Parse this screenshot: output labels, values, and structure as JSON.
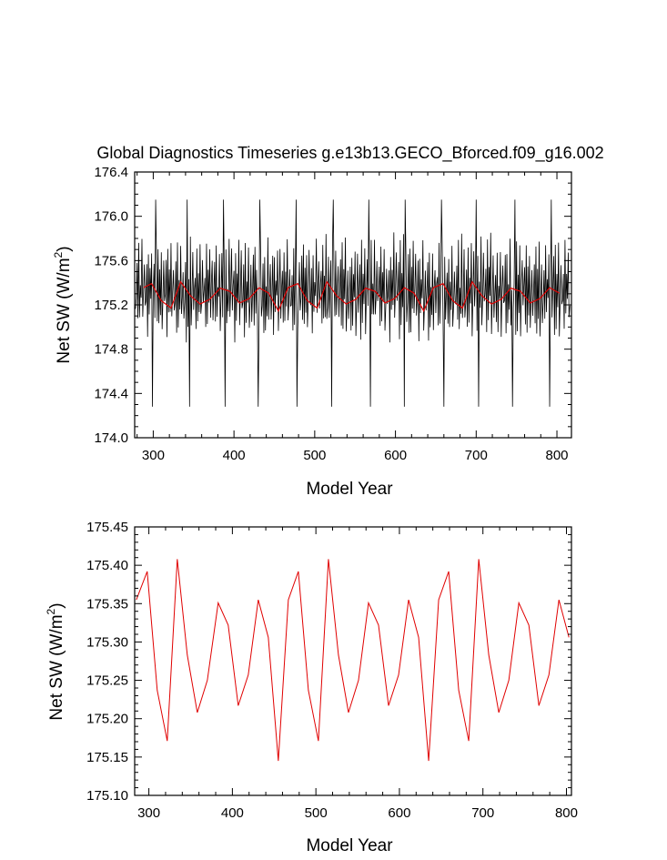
{
  "chart_data": [
    {
      "type": "line",
      "title": "Global Diagnostics Timeseries g.e13b13.GECO_Bforced.f09_g16.002",
      "xlabel": "Model Year",
      "ylabel": "Net SW (W/m",
      "ylabel_sup": "2",
      "ylabel_end": ")",
      "xlim": [
        277,
        818
      ],
      "ylim": [
        174.0,
        176.4
      ],
      "xticks": [
        300,
        400,
        500,
        600,
        700,
        800
      ],
      "xtick_labels": [
        "300",
        "400",
        "500",
        "600",
        "700",
        "800"
      ],
      "yticks": [
        174.0,
        174.4,
        174.8,
        175.2,
        175.6,
        176.0,
        176.4
      ],
      "ytick_labels": [
        "174.0",
        "174.4",
        "174.8",
        "175.2",
        "175.6",
        "176.0",
        "176.4"
      ],
      "grid": false,
      "series": [
        {
          "color": "#000000",
          "x_start": 278,
          "x_step": 1,
          "annual_cycle": [
            175.13,
            175.3,
            175.55,
            174.97,
            175.72,
            175.05,
            175.45,
            175.18,
            175.75,
            175.02,
            175.28,
            175.6
          ],
          "spike_years": [
            303,
            342,
            387,
            432,
            477,
            523,
            567,
            612,
            657,
            700,
            748,
            793
          ],
          "spike_max": 176.15,
          "dip_years": [
            299,
            345,
            389,
            430,
            478,
            521,
            569,
            611,
            660,
            703,
            745,
            791
          ],
          "dip_min": 174.28
        },
        {
          "color": "#e00000",
          "x": [
            288,
            298,
            310,
            322,
            334,
            346,
            358,
            370,
            383,
            395,
            407,
            419,
            431,
            443,
            455,
            467,
            479,
            491,
            503,
            515,
            527,
            539,
            551,
            563,
            575,
            587,
            599,
            611,
            623,
            635,
            647,
            659,
            671,
            683,
            695,
            707,
            719,
            731,
            743,
            755,
            767,
            779,
            791,
            803
          ],
          "y": [
            175.355,
            175.392,
            175.237,
            175.171,
            175.408,
            175.283,
            175.208,
            175.25,
            175.351,
            175.322,
            175.217,
            175.257,
            175.355,
            175.306,
            175.145,
            175.355,
            175.392,
            175.237,
            175.171,
            175.408,
            175.283,
            175.208,
            175.25,
            175.351,
            175.322,
            175.217,
            175.257,
            175.355,
            175.306,
            175.145,
            175.355,
            175.392,
            175.237,
            175.171,
            175.408,
            175.283,
            175.208,
            175.25,
            175.351,
            175.322,
            175.217,
            175.257,
            175.355,
            175.306
          ]
        }
      ]
    },
    {
      "type": "line",
      "xlabel": "Model Year",
      "ylabel": "Net SW (W/m",
      "ylabel_sup": "2",
      "ylabel_end": ")",
      "xlim": [
        283,
        806
      ],
      "ylim": [
        175.1,
        175.45
      ],
      "xticks": [
        300,
        400,
        500,
        600,
        700,
        800
      ],
      "xtick_labels": [
        "300",
        "400",
        "500",
        "600",
        "700",
        "800"
      ],
      "yticks": [
        175.1,
        175.15,
        175.2,
        175.25,
        175.3,
        175.35,
        175.4,
        175.45
      ],
      "ytick_labels": [
        "175.10",
        "175.15",
        "175.20",
        "175.25",
        "175.30",
        "175.35",
        "175.40",
        "175.45"
      ],
      "grid": false,
      "series": [
        {
          "color": "#e00000",
          "x": [
            285,
            298,
            310,
            322,
            334,
            346,
            358,
            370,
            383,
            395,
            407,
            419,
            431,
            443,
            455,
            467,
            479,
            491,
            503,
            515,
            527,
            539,
            551,
            563,
            575,
            587,
            599,
            611,
            623,
            635,
            647,
            659,
            671,
            683,
            695,
            707,
            719,
            731,
            743,
            755,
            767,
            779,
            791,
            803
          ],
          "y": [
            175.355,
            175.392,
            175.237,
            175.171,
            175.408,
            175.283,
            175.208,
            175.25,
            175.351,
            175.322,
            175.217,
            175.257,
            175.355,
            175.306,
            175.145,
            175.355,
            175.392,
            175.237,
            175.171,
            175.408,
            175.283,
            175.208,
            175.25,
            175.351,
            175.322,
            175.217,
            175.257,
            175.355,
            175.306,
            175.145,
            175.355,
            175.392,
            175.237,
            175.171,
            175.408,
            175.283,
            175.208,
            175.25,
            175.351,
            175.322,
            175.217,
            175.257,
            175.355,
            175.306
          ]
        }
      ]
    }
  ]
}
